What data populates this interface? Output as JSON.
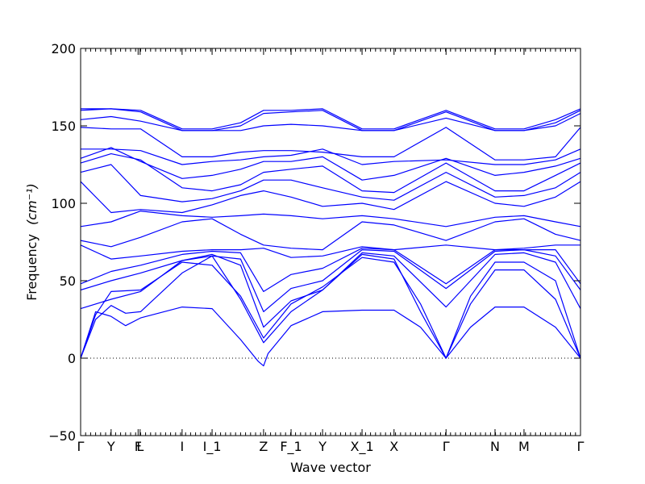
{
  "chart_data": {
    "type": "line",
    "xlabel": "Wave vector",
    "ylabel": "Frequency",
    "ylabel_unit": "(cm⁻¹)",
    "ylim": [
      -50,
      200
    ],
    "yticks": [
      -50,
      0,
      50,
      100,
      150,
      200
    ],
    "ytick_labels": [
      "−50",
      "0",
      "50",
      "100",
      "150",
      "200"
    ],
    "x_labels": [
      {
        "label": "Γ",
        "x": 0.0
      },
      {
        "label": "Y",
        "x": 0.061
      },
      {
        "label": "F",
        "x": 0.115
      },
      {
        "label": "L",
        "x": 0.119
      },
      {
        "label": "I",
        "x": 0.203
      },
      {
        "label": "I_1",
        "x": 0.263
      },
      {
        "label": "Z",
        "x": 0.366
      },
      {
        "label": "F_1",
        "x": 0.421
      },
      {
        "label": "Y",
        "x": 0.484
      },
      {
        "label": "X_1",
        "x": 0.563
      },
      {
        "label": "X",
        "x": 0.627
      },
      {
        "label": "Γ",
        "x": 0.731
      },
      {
        "label": "N",
        "x": 0.829
      },
      {
        "label": "M",
        "x": 0.887
      },
      {
        "label": "Γ",
        "x": 1.0
      }
    ],
    "zero_line": true,
    "line_color": "#0000ff",
    "series": [
      {
        "x": [
          0,
          0.03,
          0.061,
          0.09,
          0.12,
          0.203,
          0.263,
          0.32,
          0.355,
          0.366,
          0.375,
          0.421,
          0.484,
          0.563,
          0.627,
          0.68,
          0.731,
          0.78,
          0.829,
          0.887,
          0.95,
          1.0
        ],
        "y": [
          0,
          30,
          27,
          21,
          26,
          33,
          32,
          12,
          -2,
          -5,
          3,
          21,
          30,
          31,
          31,
          20,
          0,
          20,
          33,
          33,
          20,
          0
        ]
      },
      {
        "x": [
          0,
          0.03,
          0.061,
          0.09,
          0.12,
          0.203,
          0.263,
          0.32,
          0.366,
          0.421,
          0.484,
          0.563,
          0.627,
          0.68,
          0.731,
          0.78,
          0.829,
          0.887,
          0.95,
          1.0
        ],
        "y": [
          0,
          25,
          34,
          29,
          30,
          55,
          66,
          38,
          10,
          30,
          44,
          67,
          64,
          30,
          0,
          35,
          57,
          57,
          38,
          0
        ]
      },
      {
        "x": [
          0,
          0.03,
          0.061,
          0.12,
          0.203,
          0.263,
          0.32,
          0.366,
          0.421,
          0.484,
          0.563,
          0.627,
          0.68,
          0.731,
          0.78,
          0.829,
          0.887,
          0.95,
          1.0
        ],
        "y": [
          0,
          28,
          43,
          44,
          62,
          60,
          40,
          13,
          35,
          46,
          65,
          62,
          35,
          0,
          40,
          62,
          62,
          50,
          0
        ]
      },
      {
        "x": [
          0,
          0.061,
          0.12,
          0.203,
          0.263,
          0.32,
          0.366,
          0.421,
          0.484,
          0.563,
          0.627,
          0.731,
          0.829,
          0.887,
          0.95,
          1.0
        ],
        "y": [
          32,
          38,
          43,
          63,
          67,
          60,
          20,
          37,
          44,
          68,
          66,
          33,
          67,
          68,
          62,
          32
        ]
      },
      {
        "x": [
          0,
          0.061,
          0.12,
          0.203,
          0.263,
          0.32,
          0.366,
          0.421,
          0.484,
          0.563,
          0.627,
          0.731,
          0.829,
          0.887,
          0.95,
          1.0
        ],
        "y": [
          44,
          50,
          55,
          63,
          66,
          64,
          30,
          45,
          50,
          70,
          69,
          45,
          69,
          70,
          66,
          44
        ]
      },
      {
        "x": [
          0,
          0.061,
          0.12,
          0.203,
          0.263,
          0.32,
          0.366,
          0.421,
          0.484,
          0.563,
          0.627,
          0.731,
          0.829,
          0.887,
          0.95,
          1.0
        ],
        "y": [
          48,
          56,
          60,
          67,
          69,
          68,
          43,
          54,
          58,
          71,
          70,
          48,
          70,
          70,
          70,
          48
        ]
      },
      {
        "x": [
          0,
          0.061,
          0.12,
          0.203,
          0.263,
          0.32,
          0.366,
          0.421,
          0.484,
          0.563,
          0.627,
          0.731,
          0.829,
          0.887,
          0.95,
          1.0
        ],
        "y": [
          73,
          64,
          66,
          69,
          70,
          70,
          71,
          65,
          66,
          72,
          70,
          73,
          70,
          71,
          73,
          73
        ]
      },
      {
        "x": [
          0,
          0.061,
          0.12,
          0.203,
          0.263,
          0.32,
          0.366,
          0.421,
          0.484,
          0.563,
          0.627,
          0.731,
          0.829,
          0.887,
          0.95,
          1.0
        ],
        "y": [
          76,
          72,
          78,
          88,
          90,
          80,
          73,
          71,
          70,
          88,
          86,
          76,
          88,
          90,
          80,
          76
        ]
      },
      {
        "x": [
          0,
          0.061,
          0.12,
          0.203,
          0.263,
          0.32,
          0.366,
          0.421,
          0.484,
          0.563,
          0.627,
          0.731,
          0.829,
          0.887,
          0.95,
          1.0
        ],
        "y": [
          85,
          88,
          95,
          92,
          91,
          92,
          93,
          92,
          90,
          92,
          90,
          85,
          91,
          92,
          88,
          85
        ]
      },
      {
        "x": [
          0,
          0.061,
          0.12,
          0.203,
          0.263,
          0.32,
          0.366,
          0.421,
          0.484,
          0.563,
          0.627,
          0.731,
          0.829,
          0.887,
          0.95,
          1.0
        ],
        "y": [
          114,
          94,
          96,
          94,
          99,
          105,
          108,
          104,
          98,
          100,
          96,
          114,
          100,
          98,
          104,
          114
        ]
      },
      {
        "x": [
          0,
          0.061,
          0.12,
          0.203,
          0.263,
          0.32,
          0.366,
          0.421,
          0.484,
          0.563,
          0.627,
          0.731,
          0.829,
          0.887,
          0.95,
          1.0
        ],
        "y": [
          120,
          125,
          105,
          101,
          103,
          108,
          115,
          115,
          110,
          104,
          102,
          120,
          104,
          105,
          110,
          120
        ]
      },
      {
        "x": [
          0,
          0.061,
          0.12,
          0.203,
          0.263,
          0.32,
          0.366,
          0.421,
          0.484,
          0.563,
          0.627,
          0.731,
          0.829,
          0.887,
          0.95,
          1.0
        ],
        "y": [
          126,
          132,
          128,
          110,
          108,
          112,
          120,
          122,
          124,
          108,
          107,
          126,
          108,
          108,
          118,
          126
        ]
      },
      {
        "x": [
          0,
          0.061,
          0.12,
          0.203,
          0.263,
          0.32,
          0.366,
          0.421,
          0.484,
          0.563,
          0.627,
          0.731,
          0.829,
          0.887,
          0.95,
          1.0
        ],
        "y": [
          129,
          136,
          127,
          116,
          118,
          122,
          127,
          127,
          130,
          115,
          118,
          129,
          118,
          120,
          124,
          129
        ]
      },
      {
        "x": [
          0,
          0.061,
          0.12,
          0.203,
          0.263,
          0.32,
          0.366,
          0.421,
          0.484,
          0.563,
          0.627,
          0.731,
          0.829,
          0.887,
          0.95,
          1.0
        ],
        "y": [
          135,
          135,
          134,
          125,
          127,
          128,
          130,
          131,
          135,
          125,
          127,
          128,
          125,
          125,
          128,
          135
        ]
      },
      {
        "x": [
          0,
          0.061,
          0.12,
          0.203,
          0.263,
          0.32,
          0.366,
          0.421,
          0.484,
          0.563,
          0.627,
          0.731,
          0.829,
          0.887,
          0.95,
          1.0
        ],
        "y": [
          149,
          148,
          148,
          130,
          130,
          133,
          134,
          134,
          133,
          130,
          130,
          149,
          128,
          128,
          130,
          149
        ]
      },
      {
        "x": [
          0,
          0.061,
          0.12,
          0.203,
          0.263,
          0.32,
          0.366,
          0.421,
          0.484,
          0.563,
          0.627,
          0.731,
          0.829,
          0.887,
          0.95,
          1.0
        ],
        "y": [
          154,
          156,
          153,
          147,
          147,
          147,
          150,
          151,
          150,
          147,
          147,
          155,
          147,
          147,
          150,
          158
        ]
      },
      {
        "x": [
          0,
          0.061,
          0.12,
          0.203,
          0.263,
          0.32,
          0.366,
          0.421,
          0.484,
          0.563,
          0.627,
          0.731,
          0.829,
          0.887,
          0.95,
          1.0
        ],
        "y": [
          160,
          161,
          159,
          147,
          147,
          150,
          158,
          159,
          160,
          147,
          147,
          159,
          147,
          147,
          152,
          160
        ]
      },
      {
        "x": [
          0,
          0.061,
          0.12,
          0.203,
          0.263,
          0.32,
          0.366,
          0.421,
          0.484,
          0.563,
          0.627,
          0.731,
          0.829,
          0.887,
          0.95,
          1.0
        ],
        "y": [
          161,
          161,
          160,
          148,
          148,
          152,
          160,
          160,
          161,
          148,
          148,
          160,
          148,
          148,
          154,
          161
        ]
      }
    ]
  }
}
